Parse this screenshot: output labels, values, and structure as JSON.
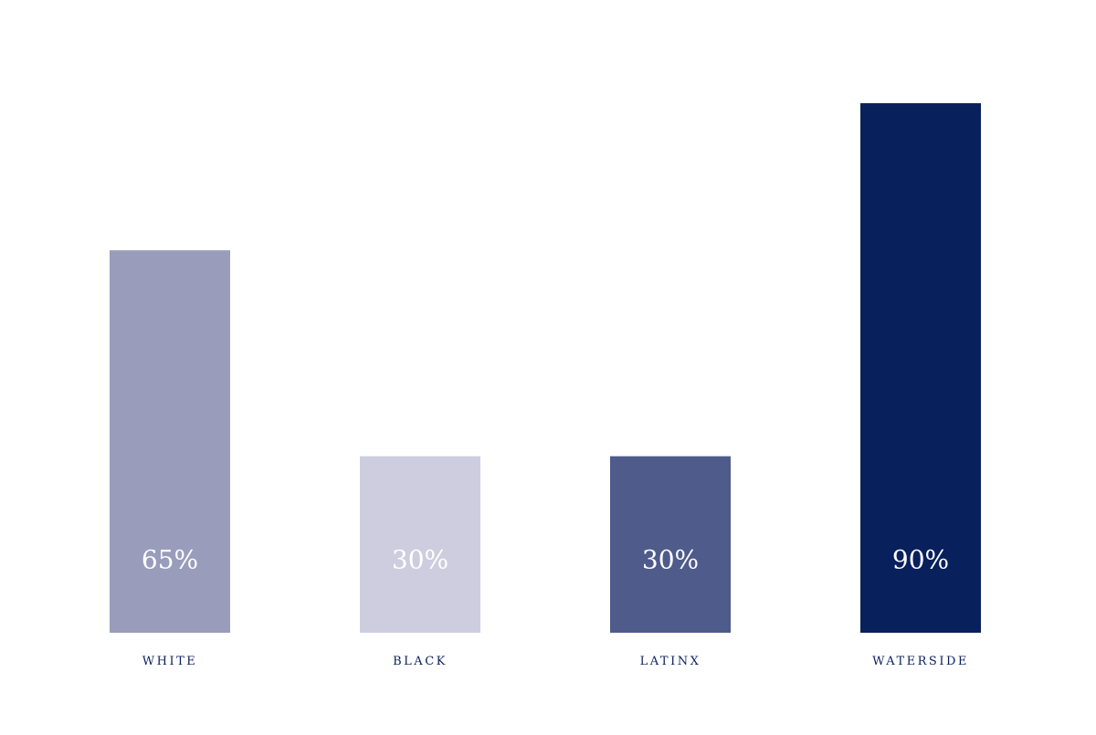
{
  "chart_data": {
    "type": "bar",
    "categories": [
      "WHITE",
      "BLACK",
      "LATINX",
      "WATERSIDE"
    ],
    "values": [
      65,
      30,
      30,
      90
    ],
    "value_labels": [
      "65%",
      "30%",
      "30%",
      "90%"
    ],
    "ylim": [
      0,
      100
    ],
    "colors": [
      "#999cbb",
      "#cdcddf",
      "#4e5b8b",
      "#08205c"
    ],
    "value_label_color": "#ffffff",
    "category_label_color": "#0b1f5c",
    "grid": false,
    "title": "",
    "xlabel": "",
    "ylabel": ""
  }
}
